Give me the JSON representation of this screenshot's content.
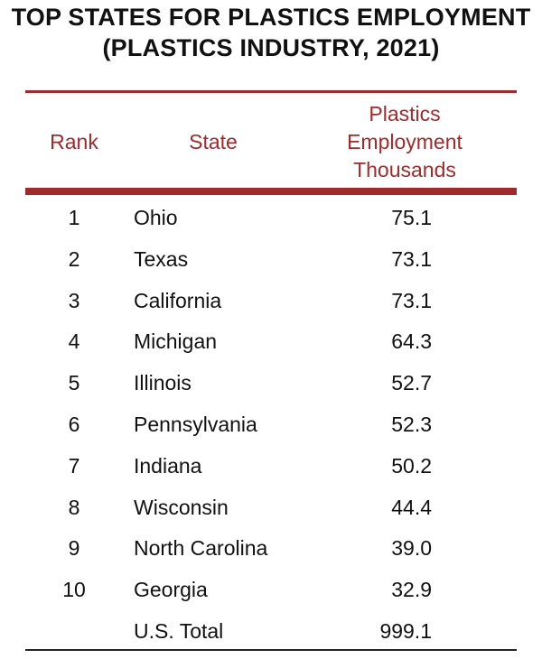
{
  "title_lines": [
    "TOP STATES FOR PLASTICS EMPLOYMENT",
    "(PLASTICS INDUSTRY, 2021)"
  ],
  "colors": {
    "accent": "#a5282a",
    "text": "#111111"
  },
  "chart_data": {
    "type": "table",
    "title": "TOP STATES FOR PLASTICS EMPLOYMENT (PLASTICS INDUSTRY, 2021)",
    "columns": [
      "Rank",
      "State",
      "Plastics Employment Thousands"
    ],
    "header": {
      "rank": "Rank",
      "state": "State",
      "employment_lines": [
        "Plastics",
        "Employment",
        "Thousands"
      ]
    },
    "rows": [
      {
        "rank": "1",
        "state": "Ohio",
        "value": "75.1"
      },
      {
        "rank": "2",
        "state": "Texas",
        "value": "73.1"
      },
      {
        "rank": "3",
        "state": "California",
        "value": "73.1"
      },
      {
        "rank": "4",
        "state": "Michigan",
        "value": "64.3"
      },
      {
        "rank": "5",
        "state": "Illinois",
        "value": "52.7"
      },
      {
        "rank": "6",
        "state": "Pennsylvania",
        "value": "52.3"
      },
      {
        "rank": "7",
        "state": "Indiana",
        "value": "50.2"
      },
      {
        "rank": "8",
        "state": "Wisconsin",
        "value": "44.4"
      },
      {
        "rank": "9",
        "state": "North Carolina",
        "value": "39.0"
      },
      {
        "rank": "10",
        "state": "Georgia",
        "value": "32.9"
      },
      {
        "rank": "",
        "state": "U.S. Total",
        "value": "999.1"
      }
    ]
  }
}
